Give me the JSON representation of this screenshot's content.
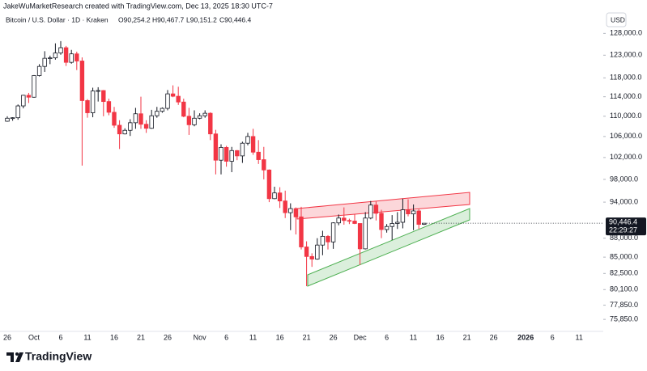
{
  "header": {
    "credit": "JakeWuMarketResearch created with TradingView.com, Dec 13, 2025 18:30 UTC-7",
    "symbol": "Bitcoin / U.S. Dollar · 1D · Kraken",
    "open": "O90,254.2",
    "high": "H90,467.7",
    "low": "L90,151.2",
    "close": "C90,446.4"
  },
  "footer": {
    "brand": "TradingView"
  },
  "chart_data": {
    "type": "candlestick",
    "y_axis_label": "USD",
    "last_price_label": "90,446.4",
    "countdown_label": "22:29:27",
    "log_scale": true,
    "grid": false,
    "up_color": "#ffffff",
    "up_border": "#131722",
    "down_color": "#f23645",
    "ylim": [
      74200,
      132500
    ],
    "yticks": [
      {
        "value": 128000,
        "label": "128,000.0"
      },
      {
        "value": 123000,
        "label": "123,000.0"
      },
      {
        "value": 118000,
        "label": "118,000.0"
      },
      {
        "value": 114000,
        "label": "114,000.0"
      },
      {
        "value": 110000,
        "label": "110,000.0"
      },
      {
        "value": 106000,
        "label": "106,000.0"
      },
      {
        "value": 102000,
        "label": "102,000.0"
      },
      {
        "value": 98000,
        "label": "98,000.0"
      },
      {
        "value": 94000,
        "label": "94,000.0"
      },
      {
        "value": 88000,
        "label": "88,000.0"
      },
      {
        "value": 85000,
        "label": "85,000.0"
      },
      {
        "value": 82500,
        "label": "82,500.0"
      },
      {
        "value": 80100,
        "label": "80,100.0"
      },
      {
        "value": 77850,
        "label": "77,850.0"
      },
      {
        "value": 75850,
        "label": "75,850.0"
      }
    ],
    "categories": [
      "26",
      null,
      null,
      null,
      null,
      "Oct",
      null,
      null,
      null,
      null,
      "6",
      null,
      null,
      null,
      null,
      "11",
      null,
      null,
      null,
      null,
      "16",
      null,
      null,
      null,
      null,
      "21",
      null,
      null,
      null,
      null,
      "26",
      null,
      null,
      null,
      null,
      null,
      "Nov",
      null,
      null,
      null,
      null,
      "6",
      null,
      null,
      null,
      null,
      "11",
      null,
      null,
      null,
      null,
      "16",
      null,
      null,
      null,
      null,
      "21",
      null,
      null,
      null,
      null,
      "26",
      null,
      null,
      null,
      null,
      "Dec",
      null,
      null,
      null,
      null,
      "6",
      null,
      null,
      null,
      null,
      "11",
      null,
      null,
      null,
      null,
      "16",
      null,
      null,
      null,
      null,
      "21",
      null,
      null,
      null,
      null,
      "26",
      null,
      null,
      null,
      null,
      null,
      "2026",
      null,
      null,
      null,
      null,
      "6",
      null,
      null,
      null,
      null,
      "11",
      null,
      null,
      null
    ],
    "open": [
      109000,
      109600,
      109700,
      112100,
      114300,
      113900,
      118500,
      120500,
      122300,
      122400,
      123500,
      124700,
      121400,
      123300,
      121700,
      113200,
      110700,
      115200,
      115300,
      113000,
      110800,
      108200,
      106500,
      107200,
      108700,
      110500,
      108400,
      107600,
      110100,
      111000,
      111600,
      114600,
      114100,
      112900,
      110000,
      108300,
      109600,
      110100,
      110600,
      106500,
      101500,
      103900,
      101300,
      103300,
      102300,
      104700,
      106000,
      103000,
      101600,
      99700,
      94600,
      95600,
      94200,
      92200,
      92900,
      91500,
      86600,
      85100,
      84700,
      86900,
      88300,
      87400,
      90500,
      91300,
      90900,
      90800,
      90400,
      86300,
      91300,
      93500,
      92100,
      89400,
      89900,
      90400,
      90600,
      92700,
      92000,
      92500,
      90254.2,
      null,
      null,
      null,
      null,
      null,
      null,
      null,
      null,
      null,
      null,
      null,
      null,
      null,
      null,
      null,
      null,
      null,
      null,
      null,
      null,
      null,
      null,
      null,
      null,
      null,
      null,
      null,
      null,
      null,
      null,
      null,
      null
    ],
    "high": [
      110000,
      109800,
      112400,
      114400,
      114800,
      118600,
      121000,
      123900,
      122900,
      125700,
      126200,
      125100,
      124200,
      123800,
      122500,
      113500,
      115900,
      116000,
      115400,
      113600,
      111900,
      109200,
      107600,
      109400,
      111700,
      114000,
      109200,
      111300,
      111900,
      111800,
      115400,
      116400,
      116100,
      113600,
      111700,
      111200,
      110600,
      111200,
      110800,
      107300,
      104500,
      104200,
      104000,
      103400,
      105000,
      106700,
      107500,
      105300,
      104000,
      99800,
      96700,
      96600,
      96000,
      93800,
      93100,
      93200,
      87500,
      85600,
      88000,
      89200,
      88500,
      90600,
      91900,
      93100,
      91200,
      92000,
      90400,
      92300,
      94200,
      94100,
      92700,
      90300,
      91800,
      92300,
      94600,
      94500,
      93600,
      92800,
      90467.7,
      null,
      null,
      null,
      null,
      null,
      null,
      null,
      null,
      null,
      null,
      null,
      null,
      null,
      null,
      null,
      null,
      null,
      null,
      null,
      null,
      null,
      null,
      null,
      null,
      null,
      null,
      null,
      null,
      null,
      null,
      null,
      null
    ],
    "low": [
      108900,
      109100,
      109300,
      111600,
      112700,
      113800,
      118300,
      119300,
      121000,
      122000,
      123100,
      120600,
      121100,
      119700,
      100500,
      109700,
      109800,
      113000,
      110000,
      110200,
      107700,
      103600,
      106400,
      106100,
      107500,
      107500,
      106700,
      107500,
      109700,
      110700,
      111200,
      113900,
      112300,
      109800,
      106300,
      108000,
      109400,
      109700,
      105300,
      98900,
      98900,
      100300,
      99300,
      101500,
      101000,
      104300,
      102500,
      100800,
      98000,
      94000,
      94500,
      93000,
      91300,
      89300,
      88600,
      86200,
      80600,
      83500,
      84600,
      85300,
      86200,
      86300,
      90100,
      90200,
      90300,
      90300,
      83800,
      86200,
      91100,
      90900,
      88000,
      88900,
      87700,
      89500,
      89600,
      91600,
      89300,
      89500,
      90151.2,
      null,
      null,
      null,
      null,
      null,
      null,
      null,
      null,
      null,
      null,
      null,
      null,
      null,
      null,
      null,
      null,
      null,
      null,
      null,
      null,
      null,
      null,
      null,
      null,
      null,
      null,
      null,
      null,
      null,
      null,
      null,
      null
    ],
    "close": [
      109600,
      109700,
      112100,
      114300,
      113900,
      118500,
      120500,
      122300,
      122400,
      123500,
      124700,
      121400,
      123300,
      121700,
      113200,
      110700,
      115200,
      115300,
      113000,
      110800,
      108200,
      106500,
      107200,
      108700,
      110500,
      108400,
      107600,
      110100,
      111000,
      111600,
      114600,
      114100,
      112900,
      110000,
      108300,
      109600,
      110100,
      110600,
      106500,
      101500,
      103900,
      101300,
      103300,
      102300,
      104700,
      106000,
      103000,
      101600,
      99700,
      94600,
      95600,
      94200,
      92200,
      92900,
      91500,
      86600,
      85100,
      84700,
      86900,
      88300,
      87400,
      90500,
      91300,
      90900,
      90800,
      90400,
      86300,
      91300,
      93500,
      92100,
      89400,
      89900,
      90400,
      90600,
      92700,
      92000,
      92500,
      90254.2,
      90446.4,
      null,
      null,
      null,
      null,
      null,
      null,
      null,
      null,
      null,
      null,
      null,
      null,
      null,
      null,
      null,
      null,
      null,
      null,
      null,
      null,
      null,
      null,
      null,
      null,
      null,
      null,
      null,
      null,
      null,
      null,
      null,
      null
    ]
  }
}
